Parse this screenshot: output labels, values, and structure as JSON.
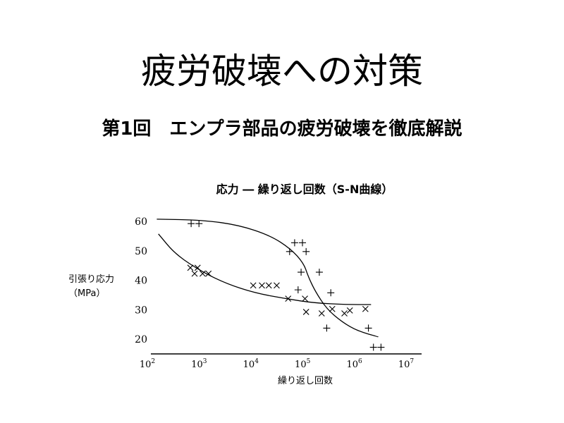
{
  "slide": {
    "title": "疲労破壊への対策",
    "subtitle": "第1回　エンプラ部品の疲労破壊を徹底解説"
  },
  "chart_data": {
    "type": "scatter",
    "title": "応力 ― 繰り返し回数（S-N曲線）",
    "xlabel": "繰り返し回数",
    "ylabel": [
      "引張り応力",
      "（MPa）"
    ],
    "xscale": "log",
    "xlim": [
      100,
      10000000
    ],
    "ylim": [
      15,
      63
    ],
    "x_ticks": [
      {
        "base": "10",
        "exp": "2",
        "value": 100
      },
      {
        "base": "10",
        "exp": "3",
        "value": 1000
      },
      {
        "base": "10",
        "exp": "4",
        "value": 10000
      },
      {
        "base": "10",
        "exp": "5",
        "value": 100000
      },
      {
        "base": "10",
        "exp": "6",
        "value": 1000000
      },
      {
        "base": "10",
        "exp": "7",
        "value": 10000000
      }
    ],
    "y_ticks": [
      60,
      50,
      40,
      30,
      20
    ],
    "grid": false,
    "legend": "none",
    "series": [
      {
        "marker": "+",
        "points": [
          [
            600,
            59
          ],
          [
            850,
            59
          ],
          [
            48000,
            49.5
          ],
          [
            60000,
            52.5
          ],
          [
            85000,
            52.5
          ],
          [
            100000,
            49.5
          ],
          [
            80000,
            42.5
          ],
          [
            180000,
            42.5
          ],
          [
            70000,
            36.5
          ],
          [
            300000,
            35.5
          ],
          [
            250000,
            23.5
          ],
          [
            1600000,
            23.5
          ],
          [
            2000000,
            17
          ],
          [
            2800000,
            17
          ]
        ],
        "curve": [
          [
            130,
            60.5
          ],
          [
            1000,
            60.2
          ],
          [
            5000,
            58.5
          ],
          [
            20000,
            55
          ],
          [
            50000,
            50.5
          ],
          [
            90000,
            45.5
          ],
          [
            110000,
            41
          ],
          [
            150000,
            36
          ],
          [
            250000,
            30
          ],
          [
            500000,
            25.5
          ],
          [
            1000000,
            22.5
          ],
          [
            2500000,
            20.5
          ]
        ]
      },
      {
        "marker": "x",
        "points": [
          [
            580,
            44
          ],
          [
            800,
            44
          ],
          [
            700,
            42
          ],
          [
            1000,
            42
          ],
          [
            1300,
            42
          ],
          [
            9500,
            38
          ],
          [
            14000,
            38
          ],
          [
            19000,
            38
          ],
          [
            27000,
            38
          ],
          [
            45000,
            33.5
          ],
          [
            95000,
            33.5
          ],
          [
            100000,
            29
          ],
          [
            200000,
            28.5
          ],
          [
            320000,
            30
          ],
          [
            550000,
            28.5
          ],
          [
            700000,
            29.5
          ],
          [
            1400000,
            30
          ]
        ],
        "curve": [
          [
            140,
            55.5
          ],
          [
            300,
            48.5
          ],
          [
            1000,
            42.5
          ],
          [
            3000,
            38.5
          ],
          [
            10000,
            35.5
          ],
          [
            40000,
            33.5
          ],
          [
            150000,
            32
          ],
          [
            600000,
            31.5
          ],
          [
            1800000,
            31.5
          ]
        ]
      }
    ]
  }
}
